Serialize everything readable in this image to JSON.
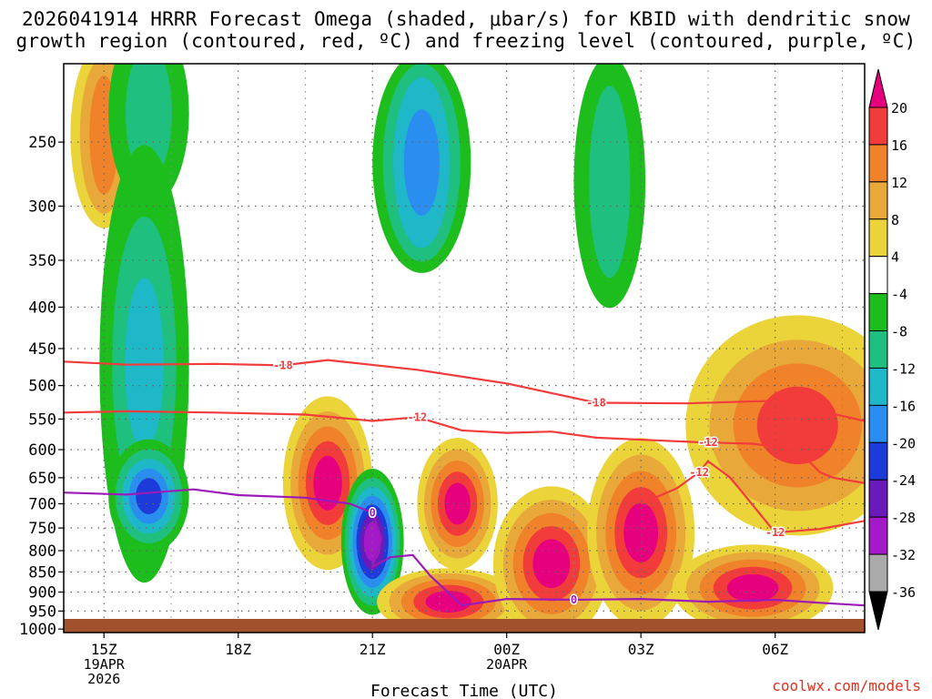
{
  "title": {
    "line1": "2026041914 HRRR Forecast Omega (shaded, μbar/s) for KBID with dendritic snow",
    "line2": "growth region (contoured, red, ºC) and freezing level (contoured, purple, ºC)"
  },
  "credit": "coolwx.com/models",
  "chart_data": {
    "type": "heatmap",
    "title": "2026041914 HRRR Forecast Omega (shaded, μbar/s) for KBID with dendritic snow growth region (contoured, red, ºC) and freezing level (contoured, purple, ºC)",
    "xlabel": "Forecast Time (UTC)",
    "ylabel": "",
    "x_ticks": [
      {
        "label": "15Z",
        "sub": [
          "19APR",
          "2026"
        ],
        "hour": 15
      },
      {
        "label": "18Z",
        "sub": [],
        "hour": 18
      },
      {
        "label": "21Z",
        "sub": [],
        "hour": 21
      },
      {
        "label": "00Z",
        "sub": [
          "20APR"
        ],
        "hour": 24
      },
      {
        "label": "03Z",
        "sub": [],
        "hour": 27
      },
      {
        "label": "06Z",
        "sub": [],
        "hour": 30
      }
    ],
    "xlim_hours": [
      14.1,
      32.0
    ],
    "y_ticks": [
      250,
      300,
      350,
      400,
      450,
      500,
      550,
      600,
      650,
      700,
      750,
      800,
      850,
      900,
      950,
      1000
    ],
    "ylim_hpa": [
      1010,
      200
    ],
    "colorbar": {
      "levels": [
        "20",
        "16",
        "12",
        "8",
        "4",
        "-4",
        "-8",
        "-12",
        "-16",
        "-20",
        "-24",
        "-28",
        "-32",
        "-36"
      ],
      "colors": [
        "#e6007e",
        "#f23b3b",
        "#f0822a",
        "#e8a93a",
        "#ebd33a",
        "#ffffff",
        "#1ebd1e",
        "#1fbf7f",
        "#1fb8c8",
        "#2a8ef0",
        "#1c3bd8",
        "#6a1ab8",
        "#a51ac8",
        "#aaaaaa",
        "#000000"
      ]
    },
    "omega_features": [
      {
        "name": "upper-left positive",
        "hour": 15.0,
        "p": 245,
        "value": 10
      },
      {
        "name": "upper green band",
        "hour": 16.0,
        "p": 230,
        "value": -6
      },
      {
        "name": "green column west",
        "hour": 15.9,
        "p": 470,
        "value": -10
      },
      {
        "name": "cyan core low-level",
        "hour": 16.0,
        "p": 685,
        "value": -18
      },
      {
        "name": "magenta core 20Z",
        "hour": 20.0,
        "p": 660,
        "value": 22
      },
      {
        "name": "blue core 21Z",
        "hour": 21.0,
        "p": 780,
        "value": -26
      },
      {
        "name": "orange core 22Z",
        "hour": 22.9,
        "p": 700,
        "value": 17
      },
      {
        "name": "magenta core 23Z low",
        "hour": 22.7,
        "p": 925,
        "value": 22
      },
      {
        "name": "teal upper 22Z",
        "hour": 22.1,
        "p": 265,
        "value": -12
      },
      {
        "name": "magenta core 01Z",
        "hour": 25.0,
        "p": 830,
        "value": 22
      },
      {
        "name": "magenta core 03Z",
        "hour": 27.0,
        "p": 760,
        "value": 22
      },
      {
        "name": "red core 05Z low",
        "hour": 29.5,
        "p": 890,
        "value": 18
      },
      {
        "name": "orange band upper right",
        "hour": 30.5,
        "p": 560,
        "value": 12
      },
      {
        "name": "green column 02Z upper",
        "hour": 26.3,
        "p": 280,
        "value": -6
      }
    ],
    "contours": [
      {
        "name": "dendritic -18",
        "level": "-18",
        "color": "#f23b3b",
        "x_hours": [
          14.1,
          15.5,
          17.5,
          19.0,
          20.0,
          22.0,
          24.0,
          26.0,
          28.0,
          30.0,
          32.0
        ],
        "p_hpa": [
          467,
          471,
          470,
          472,
          465,
          478,
          497,
          525,
          526,
          522,
          553
        ]
      },
      {
        "name": "dendritic -12 upper",
        "level": "-12",
        "color": "#f23b3b",
        "x_hours": [
          14.1,
          15.5,
          17.5,
          19.5,
          21.0,
          22.0,
          23.0,
          24.0,
          25.0,
          26.0,
          27.5,
          28.5,
          29.5,
          30.5,
          31.0,
          31.3,
          32.0
        ],
        "p_hpa": [
          540,
          538,
          540,
          543,
          553,
          547,
          568,
          572,
          570,
          580,
          585,
          588,
          590,
          600,
          640,
          650,
          660
        ]
      },
      {
        "name": "dendritic -12 lower",
        "level": "-12",
        "color": "#f23b3b",
        "x_hours": [
          27.0,
          27.8,
          28.3,
          28.5,
          29.0,
          30.0,
          31.0,
          32.0
        ],
        "p_hpa": [
          700,
          670,
          640,
          620,
          650,
          760,
          752,
          735
        ]
      },
      {
        "name": "freezing level 0C",
        "level": "0",
        "color": "#9b1ab8",
        "x_hours": [
          14.1,
          15.5,
          17.0,
          18.0,
          19.5,
          20.5,
          21.0,
          21.2,
          21.0,
          21.4,
          21.9,
          22.3,
          23.0,
          24.0,
          25.5,
          27.0,
          28.5,
          30.0,
          31.0,
          32.0
        ],
        "p_hpa": [
          678,
          682,
          672,
          683,
          688,
          700,
          718,
          773,
          838,
          815,
          810,
          860,
          935,
          918,
          920,
          918,
          925,
          920,
          928,
          935
        ]
      }
    ]
  }
}
